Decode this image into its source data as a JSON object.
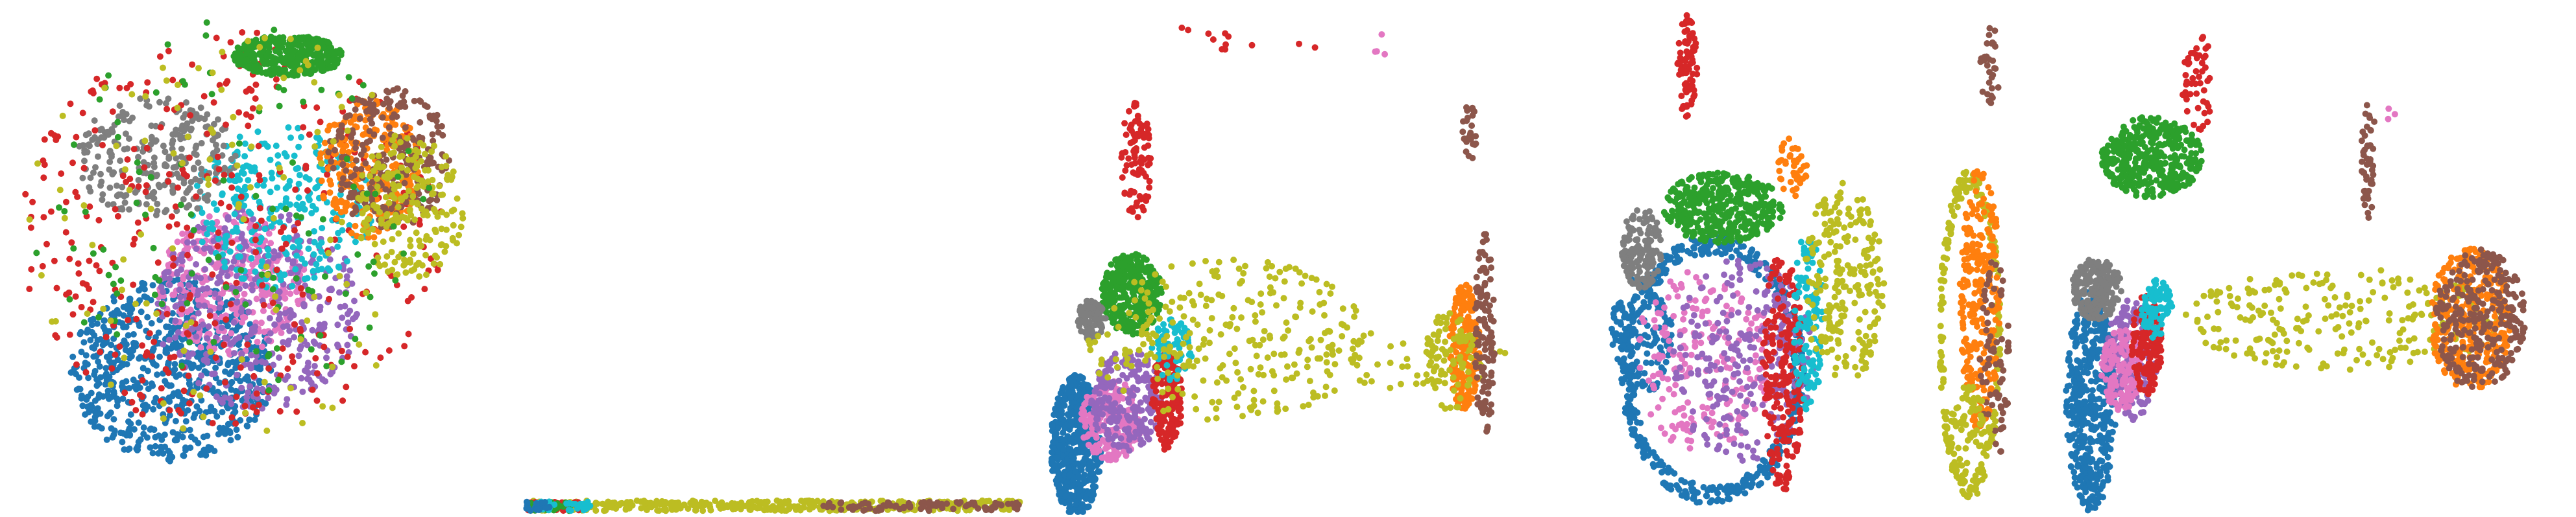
{
  "figure": {
    "panel_count": 5,
    "axes_visible": false,
    "background": "#ffffff"
  },
  "palette": {
    "blue": "#1f77b4",
    "orange": "#ff7f0e",
    "green": "#2ca02c",
    "red": "#d62728",
    "purple": "#9467bd",
    "brown": "#8c564b",
    "pink": "#e377c2",
    "gray": "#7f7f7f",
    "olive": "#bcbd22",
    "cyan": "#17becf"
  },
  "chart_data": [
    {
      "type": "scatter",
      "grid": false,
      "legend": "none",
      "xlim": [
        0,
        100
      ],
      "ylim": [
        0,
        100
      ],
      "series": [
        {
          "color": "blue",
          "shape": "ellipse",
          "cx": 33,
          "cy": 28,
          "rx": 20,
          "ry": 18,
          "n": 700
        },
        {
          "color": "pink",
          "shape": "ellipse",
          "cx": 45,
          "cy": 45,
          "rx": 15,
          "ry": 14,
          "n": 320
        },
        {
          "color": "purple",
          "shape": "ellipse",
          "cx": 50,
          "cy": 40,
          "rx": 20,
          "ry": 20,
          "n": 380
        },
        {
          "color": "cyan",
          "shape": "ellipse",
          "cx": 55,
          "cy": 60,
          "rx": 18,
          "ry": 16,
          "n": 280
        },
        {
          "color": "gray",
          "shape": "ellipse",
          "cx": 30,
          "cy": 70,
          "rx": 16,
          "ry": 12,
          "n": 260
        },
        {
          "color": "red",
          "shape": "ellipse",
          "cx": 45,
          "cy": 55,
          "rx": 42,
          "ry": 40,
          "n": 360
        },
        {
          "color": "orange",
          "shape": "ellipse",
          "cx": 72,
          "cy": 68,
          "rx": 10,
          "ry": 14,
          "n": 260
        },
        {
          "color": "brown",
          "shape": "ellipse",
          "cx": 76,
          "cy": 70,
          "rx": 12,
          "ry": 14,
          "n": 240
        },
        {
          "color": "olive",
          "shape": "ellipse",
          "cx": 80,
          "cy": 60,
          "rx": 11,
          "ry": 14,
          "n": 200
        },
        {
          "color": "green",
          "shape": "ellipse",
          "cx": 56,
          "cy": 90,
          "rx": 11,
          "ry": 4,
          "n": 360
        },
        {
          "color": "green",
          "shape": "ellipse",
          "cx": 45,
          "cy": 60,
          "rx": 40,
          "ry": 38,
          "n": 120
        },
        {
          "color": "olive",
          "shape": "ellipse",
          "cx": 45,
          "cy": 55,
          "rx": 42,
          "ry": 40,
          "n": 120
        }
      ]
    },
    {
      "type": "scatter",
      "grid": false,
      "legend": "none",
      "xlim": [
        0,
        100
      ],
      "ylim": [
        0,
        100
      ],
      "series": [
        {
          "color": "olive",
          "shape": "band",
          "x0": 2,
          "x1": 99,
          "y0": 0.2,
          "y1": 2.2,
          "n": 420
        },
        {
          "color": "brown",
          "shape": "band",
          "x0": 60,
          "x1": 99,
          "y0": 0.2,
          "y1": 2.0,
          "n": 90
        },
        {
          "color": "red",
          "shape": "band",
          "x0": 1,
          "x1": 12,
          "y0": 0.2,
          "y1": 2.0,
          "n": 40
        },
        {
          "color": "green",
          "shape": "band",
          "x0": 2,
          "x1": 10,
          "y0": 0.2,
          "y1": 2.0,
          "n": 30
        },
        {
          "color": "cyan",
          "shape": "band",
          "x0": 3,
          "x1": 14,
          "y0": 0.2,
          "y1": 2.0,
          "n": 30
        },
        {
          "color": "blue",
          "shape": "band",
          "x0": 1,
          "x1": 6,
          "y0": 0.2,
          "y1": 2.0,
          "n": 20
        }
      ]
    },
    {
      "type": "scatter",
      "grid": false,
      "legend": "none",
      "xlim": [
        0,
        100
      ],
      "ylim": [
        0,
        100
      ],
      "series": [
        {
          "color": "blue",
          "shape": "ellipse",
          "cx": 8,
          "cy": 13,
          "rx": 5,
          "ry": 14,
          "n": 520
        },
        {
          "color": "pink",
          "shape": "ellipse",
          "cx": 15,
          "cy": 18,
          "rx": 6,
          "ry": 8,
          "n": 200
        },
        {
          "color": "purple",
          "shape": "ellipse",
          "cx": 18,
          "cy": 22,
          "rx": 7,
          "ry": 10,
          "n": 220
        },
        {
          "color": "red",
          "shape": "ellipse",
          "cx": 26,
          "cy": 22,
          "rx": 3,
          "ry": 10,
          "n": 160
        },
        {
          "color": "green",
          "shape": "ellipse",
          "cx": 19,
          "cy": 43,
          "rx": 6,
          "ry": 8,
          "n": 360
        },
        {
          "color": "gray",
          "shape": "ellipse",
          "cx": 11,
          "cy": 38,
          "rx": 3,
          "ry": 4,
          "n": 90
        },
        {
          "color": "cyan",
          "shape": "ellipse",
          "cx": 27,
          "cy": 32,
          "rx": 4,
          "ry": 6,
          "n": 60
        },
        {
          "color": "red",
          "shape": "ellipse",
          "cx": 20,
          "cy": 70,
          "rx": 3,
          "ry": 12,
          "n": 90
        },
        {
          "color": "olive",
          "shape": "ellipse",
          "cx": 38,
          "cy": 34,
          "rx": 28,
          "ry": 16,
          "n": 280
        },
        {
          "color": "olive",
          "shape": "ellipse",
          "cx": 75,
          "cy": 30,
          "rx": 20,
          "ry": 6,
          "n": 60
        },
        {
          "color": "orange",
          "shape": "ellipse",
          "cx": 85,
          "cy": 32,
          "rx": 3,
          "ry": 13,
          "n": 200
        },
        {
          "color": "brown",
          "shape": "ellipse",
          "cx": 89,
          "cy": 35,
          "rx": 2,
          "ry": 20,
          "n": 120
        },
        {
          "color": "olive",
          "shape": "ellipse",
          "cx": 82,
          "cy": 30,
          "rx": 5,
          "ry": 10,
          "n": 80
        },
        {
          "color": "brown",
          "shape": "ellipse",
          "cx": 86,
          "cy": 75,
          "rx": 1.5,
          "ry": 6,
          "n": 25
        },
        {
          "color": "red",
          "shape": "ellipse",
          "cx": 41,
          "cy": 93,
          "rx": 16,
          "ry": 4,
          "n": 12
        },
        {
          "color": "pink",
          "shape": "ellipse",
          "cx": 70,
          "cy": 92,
          "rx": 3,
          "ry": 3,
          "n": 4
        }
      ]
    },
    {
      "type": "scatter",
      "grid": false,
      "legend": "none",
      "xlim": [
        0,
        100
      ],
      "ylim": [
        0,
        100
      ],
      "series": [
        {
          "color": "blue",
          "shape": "ring",
          "cx": 32,
          "cy": 28,
          "rx": 18,
          "ry": 26,
          "n": 460
        },
        {
          "color": "blue",
          "shape": "ellipse",
          "cx": 18,
          "cy": 35,
          "rx": 6,
          "ry": 12,
          "n": 160
        },
        {
          "color": "pink",
          "shape": "ellipse",
          "cx": 30,
          "cy": 30,
          "rx": 14,
          "ry": 18,
          "n": 200
        },
        {
          "color": "purple",
          "shape": "ellipse",
          "cx": 38,
          "cy": 30,
          "rx": 14,
          "ry": 20,
          "n": 260
        },
        {
          "color": "red",
          "shape": "ellipse",
          "cx": 46,
          "cy": 28,
          "rx": 4,
          "ry": 24,
          "n": 220
        },
        {
          "color": "cyan",
          "shape": "ellipse",
          "cx": 51,
          "cy": 38,
          "rx": 3,
          "ry": 18,
          "n": 120
        },
        {
          "color": "green",
          "shape": "ellipse",
          "cx": 34,
          "cy": 60,
          "rx": 12,
          "ry": 7,
          "n": 380
        },
        {
          "color": "gray",
          "shape": "ellipse",
          "cx": 18,
          "cy": 52,
          "rx": 4,
          "ry": 8,
          "n": 140
        },
        {
          "color": "red",
          "shape": "ellipse",
          "cx": 27,
          "cy": 88,
          "rx": 2,
          "ry": 10,
          "n": 80
        },
        {
          "color": "olive",
          "shape": "ellipse",
          "cx": 58,
          "cy": 45,
          "rx": 8,
          "ry": 20,
          "n": 220
        },
        {
          "color": "orange",
          "shape": "ellipse",
          "cx": 48,
          "cy": 68,
          "rx": 3,
          "ry": 6,
          "n": 40
        },
        {
          "color": "olive",
          "shape": "ring",
          "cx": 83,
          "cy": 35,
          "rx": 6,
          "ry": 32,
          "n": 220
        },
        {
          "color": "orange",
          "shape": "ellipse",
          "cx": 85,
          "cy": 42,
          "rx": 4,
          "ry": 26,
          "n": 260
        },
        {
          "color": "brown",
          "shape": "ellipse",
          "cx": 88,
          "cy": 30,
          "rx": 3,
          "ry": 20,
          "n": 70
        },
        {
          "color": "brown",
          "shape": "ellipse",
          "cx": 87,
          "cy": 88,
          "rx": 2,
          "ry": 8,
          "n": 30
        },
        {
          "color": "olive",
          "shape": "ellipse",
          "cx": 83,
          "cy": 15,
          "rx": 4,
          "ry": 10,
          "n": 80
        }
      ]
    },
    {
      "type": "scatter",
      "grid": false,
      "legend": "none",
      "xlim": [
        0,
        100
      ],
      "ylim": [
        0,
        100
      ],
      "series": [
        {
          "color": "blue",
          "shape": "ellipse",
          "cx": 5,
          "cy": 22,
          "rx": 5,
          "ry": 22,
          "n": 480
        },
        {
          "color": "gray",
          "shape": "ellipse",
          "cx": 6,
          "cy": 44,
          "rx": 5,
          "ry": 6,
          "n": 200
        },
        {
          "color": "purple",
          "shape": "ellipse",
          "cx": 13,
          "cy": 30,
          "rx": 5,
          "ry": 12,
          "n": 200
        },
        {
          "color": "pink",
          "shape": "ellipse",
          "cx": 11,
          "cy": 28,
          "rx": 4,
          "ry": 8,
          "n": 140
        },
        {
          "color": "red",
          "shape": "ellipse",
          "cx": 16,
          "cy": 33,
          "rx": 3,
          "ry": 10,
          "n": 140
        },
        {
          "color": "cyan",
          "shape": "ellipse",
          "cx": 18,
          "cy": 40,
          "rx": 3,
          "ry": 6,
          "n": 80
        },
        {
          "color": "green",
          "shape": "ellipse",
          "cx": 17,
          "cy": 70,
          "rx": 10,
          "ry": 8,
          "n": 380
        },
        {
          "color": "red",
          "shape": "ellipse",
          "cx": 26,
          "cy": 85,
          "rx": 3,
          "ry": 11,
          "n": 50
        },
        {
          "color": "olive",
          "shape": "ellipse",
          "cx": 55,
          "cy": 38,
          "rx": 32,
          "ry": 10,
          "n": 240
        },
        {
          "color": "orange",
          "shape": "ellipse",
          "cx": 80,
          "cy": 38,
          "rx": 8,
          "ry": 14,
          "n": 320
        },
        {
          "color": "brown",
          "shape": "ellipse",
          "cx": 82,
          "cy": 38,
          "rx": 9,
          "ry": 14,
          "n": 280
        },
        {
          "color": "brown",
          "shape": "ellipse",
          "cx": 60,
          "cy": 70,
          "rx": 1.5,
          "ry": 12,
          "n": 50
        },
        {
          "color": "pink",
          "shape": "ellipse",
          "cx": 65,
          "cy": 78,
          "rx": 2,
          "ry": 2,
          "n": 3
        }
      ]
    }
  ]
}
